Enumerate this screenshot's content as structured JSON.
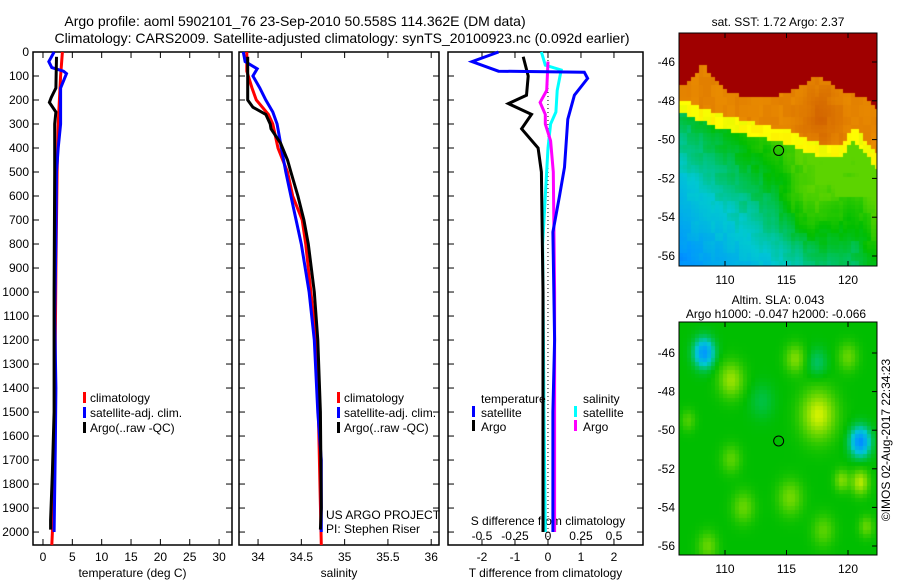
{
  "header": {
    "title_line1": "Argo profile: aoml 5902101_76 23-Sep-2010 50.558S 114.362E (DM data)",
    "title_line2": "Climatology: CARS2009. Satellite-adjusted climatology: synTS_20100923.nc (0.092d earlier)"
  },
  "credits": {
    "project": "US ARGO PROJECT",
    "pi": "PI: Stephen Riser",
    "stamp": "©IMOS 02-Aug-2017 22:34:23"
  },
  "colors": {
    "climatology": "#ff0000",
    "satellite": "#0000ff",
    "argo": "#000000",
    "sal_satellite": "#00ffff",
    "sal_argo": "#ff00ff"
  },
  "chart_data": [
    {
      "type": "line",
      "title": "",
      "xlabel": "temperature (deg C)",
      "ylabel": "",
      "xlim": [
        -1.7,
        32.2
      ],
      "ylim": [
        2054,
        0
      ],
      "xticks": [
        "0",
        "5",
        "10",
        "15",
        "20",
        "25",
        "30"
      ],
      "xtick_values": [
        0,
        5,
        10,
        15,
        20,
        25,
        30
      ],
      "yticks": [
        "0",
        "100",
        "200",
        "300",
        "400",
        "500",
        "600",
        "700",
        "800",
        "900",
        "1000",
        "1100",
        "1200",
        "1300",
        "1400",
        "1500",
        "1600",
        "1700",
        "1800",
        "1900",
        "2000"
      ],
      "legend": [
        "climatology",
        "satellite-adj. clim.",
        "Argo(..raw -QC)"
      ],
      "series": [
        {
          "name": "climatology",
          "depth": [
            0,
            100,
            200,
            300,
            500,
            900,
            1500,
            1800,
            2000,
            2054
          ],
          "values": [
            3.3,
            3.0,
            2.8,
            2.6,
            2.4,
            2.2,
            2.0,
            1.8,
            1.6,
            1.5
          ]
        },
        {
          "name": "satellite-adj. clim.",
          "depth": [
            0,
            40,
            65,
            80,
            90,
            150,
            300,
            400,
            500,
            800,
            1100,
            1400,
            1650,
            2000
          ],
          "values": [
            1.9,
            1.0,
            1.5,
            3.5,
            4.0,
            3.0,
            3.0,
            2.6,
            2.3,
            2.2,
            2.0,
            2.2,
            2.1,
            1.9
          ]
        },
        {
          "name": "Argo(..raw -QC)",
          "depth": [
            20,
            150,
            190,
            210,
            250,
            300,
            500,
            1000,
            1500,
            1750,
            1950,
            1990
          ],
          "values": [
            2.3,
            2.2,
            1.4,
            1.1,
            2.2,
            2.0,
            2.0,
            1.9,
            1.9,
            1.6,
            1.3,
            1.3
          ]
        }
      ]
    },
    {
      "type": "line",
      "xlabel": "salinity",
      "xlim": [
        33.78,
        36.09
      ],
      "ylim": [
        2054,
        0
      ],
      "xticks": [
        "34",
        "34.5",
        "35",
        "35.5",
        "36"
      ],
      "xtick_values": [
        34,
        34.5,
        35,
        35.5,
        36
      ],
      "legend": [
        "climatology",
        "satellite-adj. clim.",
        "Argo(..raw -QC)"
      ],
      "series": [
        {
          "name": "climatology",
          "depth": [
            0,
            80,
            150,
            200,
            260,
            300,
            400,
            500,
            600,
            700,
            800,
            1000,
            1200,
            1400,
            2054
          ],
          "values": [
            33.87,
            33.87,
            33.93,
            33.98,
            34.12,
            34.17,
            34.23,
            34.34,
            34.4,
            34.51,
            34.55,
            34.61,
            34.67,
            34.69,
            34.73
          ]
        },
        {
          "name": "satellite-adj. clim.",
          "depth": [
            0,
            40,
            70,
            100,
            150,
            200,
            250,
            300,
            400,
            500,
            600,
            700,
            800,
            1000,
            1200,
            1500,
            1700,
            2000
          ],
          "values": [
            33.83,
            33.85,
            33.99,
            33.94,
            34.02,
            34.09,
            34.17,
            34.22,
            34.27,
            34.32,
            34.38,
            34.44,
            34.5,
            34.59,
            34.65,
            34.69,
            34.73,
            34.73
          ]
        },
        {
          "name": "Argo(..raw -QC)",
          "depth": [
            20,
            200,
            230,
            260,
            300,
            320,
            380,
            450,
            500,
            600,
            700,
            800,
            1000,
            1200,
            1500,
            1900,
            1990
          ],
          "values": [
            33.88,
            33.88,
            33.94,
            34.09,
            34.14,
            34.15,
            34.26,
            34.34,
            34.38,
            34.46,
            34.53,
            34.58,
            34.65,
            34.69,
            34.72,
            34.73,
            34.72
          ]
        }
      ]
    },
    {
      "type": "line",
      "xlabel": "T difference from climatology",
      "x2label": "S difference from climatology",
      "xlim": [
        -3.03,
        2.88
      ],
      "ylim": [
        2054,
        0
      ],
      "xticks": [
        "-2",
        "-1",
        "0",
        "1",
        "2"
      ],
      "xtick_values": [
        -2,
        -1,
        0,
        1,
        2
      ],
      "x2ticks": [
        "-0.5",
        "-0.25",
        "0",
        "0.25",
        "0.5"
      ],
      "x2tick_values": [
        -0.5,
        -0.25,
        0,
        0.25,
        0.5
      ],
      "legend_groups": [
        {
          "title": "temperature",
          "items": [
            "satellite",
            "Argo"
          ]
        },
        {
          "title": "salinity",
          "items": [
            "satellite",
            "Argo"
          ]
        }
      ],
      "series": [
        {
          "name": "temperature satellite",
          "axis": "T",
          "depth": [
            0,
            40,
            80,
            84,
            110,
            180,
            280,
            480,
            600,
            750,
            1200,
            1500,
            2000
          ],
          "values": [
            -1.5,
            -2.3,
            -1.5,
            1.1,
            1.2,
            0.8,
            0.6,
            0.5,
            0.35,
            0.15,
            0.2,
            0.15,
            0.15
          ]
        },
        {
          "name": "temperature Argo",
          "axis": "T",
          "depth": [
            20,
            100,
            180,
            215,
            260,
            320,
            400,
            500,
            1000,
            2000
          ],
          "values": [
            -0.75,
            -0.6,
            -0.65,
            -1.2,
            -0.5,
            -0.8,
            -0.3,
            -0.2,
            -0.15,
            -0.15
          ]
        },
        {
          "name": "salinity satellite",
          "axis": "S",
          "depth": [
            0,
            55,
            75,
            160,
            250,
            300,
            400,
            600,
            800,
            1500,
            2000
          ],
          "values": [
            -0.05,
            -0.02,
            0.1,
            0.07,
            0.06,
            0.02,
            0.0,
            -0.02,
            -0.04,
            -0.03,
            -0.02
          ]
        },
        {
          "name": "salinity Argo",
          "axis": "S",
          "depth": [
            40,
            160,
            210,
            260,
            300,
            370,
            500,
            1000,
            2000
          ],
          "values": [
            0.0,
            -0.01,
            -0.06,
            -0.02,
            -0.02,
            0.02,
            0.04,
            0.05,
            0.05
          ]
        }
      ]
    },
    {
      "type": "heatmap",
      "title": "sat. SST: 1.72 Argo: 2.37",
      "xlim": [
        106.3,
        122.4
      ],
      "ylim": [
        -56.5,
        -44.5
      ],
      "xticks": [
        "110",
        "115",
        "120"
      ],
      "xtick_values": [
        110,
        115,
        120
      ],
      "yticks": [
        "-46",
        "-48",
        "-50",
        "-52",
        "-54",
        "-56"
      ],
      "ytick_values": [
        -46,
        -48,
        -50,
        -52,
        -54,
        -56
      ],
      "marker": {
        "lon": 114.362,
        "lat": -50.558
      }
    },
    {
      "type": "heatmap",
      "title": "Altim. SLA: 0.043",
      "subtitle": "Argo h1000: -0.047 h2000: -0.066",
      "xlim": [
        106.3,
        122.4
      ],
      "ylim": [
        -56.5,
        -44.4
      ],
      "xticks": [
        "110",
        "115",
        "120"
      ],
      "xtick_values": [
        110,
        115,
        120
      ],
      "yticks": [
        "-46",
        "-48",
        "-50",
        "-52",
        "-54",
        "-56"
      ],
      "ytick_values": [
        -46,
        -48,
        -50,
        -52,
        -54,
        -56
      ],
      "marker": {
        "lon": 114.362,
        "lat": -50.558
      }
    }
  ]
}
